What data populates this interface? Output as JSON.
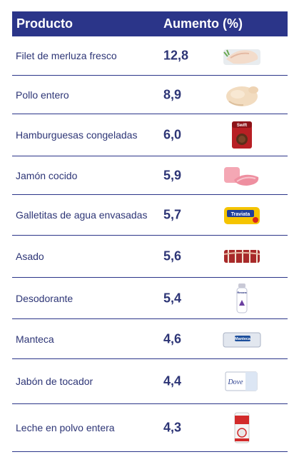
{
  "table": {
    "header": {
      "product": "Producto",
      "increase": "Aumento (%)"
    },
    "rows": [
      {
        "product": "Filet de merluza fresco",
        "increase": "12,8",
        "image": "fish-fillet-image"
      },
      {
        "product": "Pollo entero",
        "increase": "8,9",
        "image": "whole-chicken-image"
      },
      {
        "product": "Hamburguesas congeladas",
        "increase": "6,0",
        "image": "burger-box-image"
      },
      {
        "product": "Jamón cocido",
        "increase": "5,9",
        "image": "ham-image"
      },
      {
        "product": "Galletitas de agua envasadas",
        "increase": "5,7",
        "image": "crackers-pack-image"
      },
      {
        "product": "Asado",
        "increase": "5,6",
        "image": "ribs-image"
      },
      {
        "product": "Desodorante",
        "increase": "5,4",
        "image": "deodorant-image"
      },
      {
        "product": "Manteca",
        "increase": "4,6",
        "image": "butter-image"
      },
      {
        "product": "Jabón de tocador",
        "increase": "4,4",
        "image": "soap-image"
      },
      {
        "product": "Leche en polvo entera",
        "increase": "4,3",
        "image": "milk-powder-image"
      }
    ]
  },
  "product_labels": {
    "burger_brand": "Swift",
    "crackers_brand": "Traviata",
    "deodorant_brand": "Rexona",
    "butter_brand": "Manteca",
    "soap_brand": "Dove"
  },
  "colors": {
    "header_bg": "#2b3589",
    "text": "#2d3576"
  }
}
